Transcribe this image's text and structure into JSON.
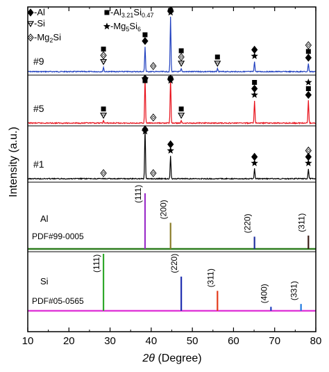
{
  "chart_data": {
    "type": "line",
    "xlabel": "2θ (Degree)",
    "ylabel": "Intensity (a.u.)",
    "xlim": [
      10,
      80
    ],
    "x_ticks": [
      "10",
      "20",
      "30",
      "40",
      "50",
      "60",
      "70",
      "80"
    ],
    "legend": [
      {
        "symbol": "diamond",
        "label": "-Al"
      },
      {
        "symbol": "square",
        "label_main": "-Al",
        "sub1": "3.21",
        "mid": "Si",
        "sub2": "0.47"
      },
      {
        "symbol": "triangle-down-open",
        "label": "-Si"
      },
      {
        "symbol": "star",
        "label_main": "-Mg",
        "sub1": "5",
        "mid": "Si",
        "sub2": "6"
      },
      {
        "symbol": "diamond-open",
        "label_main": "-Mg",
        "sub1": "2",
        "mid": "Si",
        "sub2": ""
      }
    ],
    "legend_placement": "top-left",
    "series": [
      {
        "name": "#9",
        "color": "#1f3fbf",
        "peaks": [
          [
            28.4,
            0.08
          ],
          [
            38.5,
            0.45
          ],
          [
            44.7,
            0.98
          ],
          [
            47.3,
            0.05
          ],
          [
            56.1,
            0.05
          ],
          [
            65.1,
            0.18
          ],
          [
            78.2,
            0.15
          ]
        ],
        "markers": [
          {
            "x": 28.4,
            "symbols": [
              "square",
              "diamond-open",
              "triangle-down-open"
            ]
          },
          {
            "x": 38.5,
            "symbols": [
              "square",
              "diamond"
            ]
          },
          {
            "x": 40.5,
            "symbols": [
              "diamond-open"
            ]
          },
          {
            "x": 44.7,
            "symbols": [
              "diamond",
              "square",
              "star"
            ]
          },
          {
            "x": 47.3,
            "symbols": [
              "square",
              "diamond-open",
              "triangle-down-open"
            ]
          },
          {
            "x": 56.1,
            "symbols": [
              "square",
              "triangle-down-open"
            ]
          },
          {
            "x": 65.1,
            "symbols": [
              "diamond",
              "star"
            ]
          },
          {
            "x": 78.2,
            "symbols": [
              "diamond-open",
              "square",
              "diamond"
            ]
          }
        ]
      },
      {
        "name": "#5",
        "color": "#e8101a",
        "peaks": [
          [
            28.4,
            0.05
          ],
          [
            38.5,
            1.0
          ],
          [
            44.7,
            1.0
          ],
          [
            47.3,
            0.05
          ],
          [
            65.1,
            0.5
          ],
          [
            78.2,
            0.5
          ]
        ],
        "markers": [
          {
            "x": 28.4,
            "symbols": [
              "square",
              "triangle-down-open"
            ]
          },
          {
            "x": 38.5,
            "symbols": [
              "diamond",
              "star",
              "square"
            ]
          },
          {
            "x": 40.5,
            "symbols": [
              "diamond-open"
            ]
          },
          {
            "x": 44.7,
            "symbols": [
              "diamond",
              "square",
              "star"
            ]
          },
          {
            "x": 47.3,
            "symbols": [
              "square",
              "triangle-down-open"
            ]
          },
          {
            "x": 65.1,
            "symbols": [
              "square",
              "diamond",
              "star"
            ]
          },
          {
            "x": 78.2,
            "symbols": [
              "star",
              "square",
              "diamond"
            ]
          }
        ]
      },
      {
        "name": "#1",
        "color": "#000000",
        "peaks": [
          [
            38.5,
            1.0
          ],
          [
            44.7,
            0.45
          ],
          [
            65.1,
            0.2
          ],
          [
            78.2,
            0.2
          ]
        ],
        "markers": [
          {
            "x": 28.4,
            "symbols": [
              "diamond-open"
            ]
          },
          {
            "x": 38.5,
            "symbols": [
              "diamond",
              "star"
            ]
          },
          {
            "x": 40.5,
            "symbols": [
              "diamond-open"
            ]
          },
          {
            "x": 44.7,
            "symbols": [
              "diamond",
              "star"
            ]
          },
          {
            "x": 65.1,
            "symbols": [
              "diamond",
              "star"
            ]
          },
          {
            "x": 78.2,
            "symbols": [
              "diamond-open",
              "diamond",
              "star"
            ]
          }
        ]
      }
    ],
    "references": [
      {
        "material": "Al",
        "pdf": "PDF#99-0005",
        "baseline_color": "#2d7d1e",
        "lines": [
          {
            "x": 38.5,
            "rel": 1.0,
            "hkl": "(111)",
            "color": "#9b2fc9"
          },
          {
            "x": 44.7,
            "rel": 0.47,
            "hkl": "(200)",
            "color": "#8b7d2a"
          },
          {
            "x": 65.1,
            "rel": 0.22,
            "hkl": "(220)",
            "color": "#1f2f9f"
          },
          {
            "x": 78.2,
            "rel": 0.24,
            "hkl": "(311)",
            "color": "#3a1a14"
          }
        ]
      },
      {
        "material": "Si",
        "pdf": "PDF#05-0565",
        "baseline_color": "#e03ad8",
        "lines": [
          {
            "x": 28.4,
            "rel": 1.0,
            "hkl": "(111)",
            "color": "#2fa82a"
          },
          {
            "x": 47.3,
            "rel": 0.6,
            "hkl": "(220)",
            "color": "#1f2fb0"
          },
          {
            "x": 56.1,
            "rel": 0.35,
            "hkl": "(311)",
            "color": "#e33a1a"
          },
          {
            "x": 69.1,
            "rel": 0.07,
            "hkl": "(400)",
            "color": "#1f3fbf"
          },
          {
            "x": 76.4,
            "rel": 0.12,
            "hkl": "(331)",
            "color": "#1f7ae0"
          }
        ]
      }
    ]
  }
}
